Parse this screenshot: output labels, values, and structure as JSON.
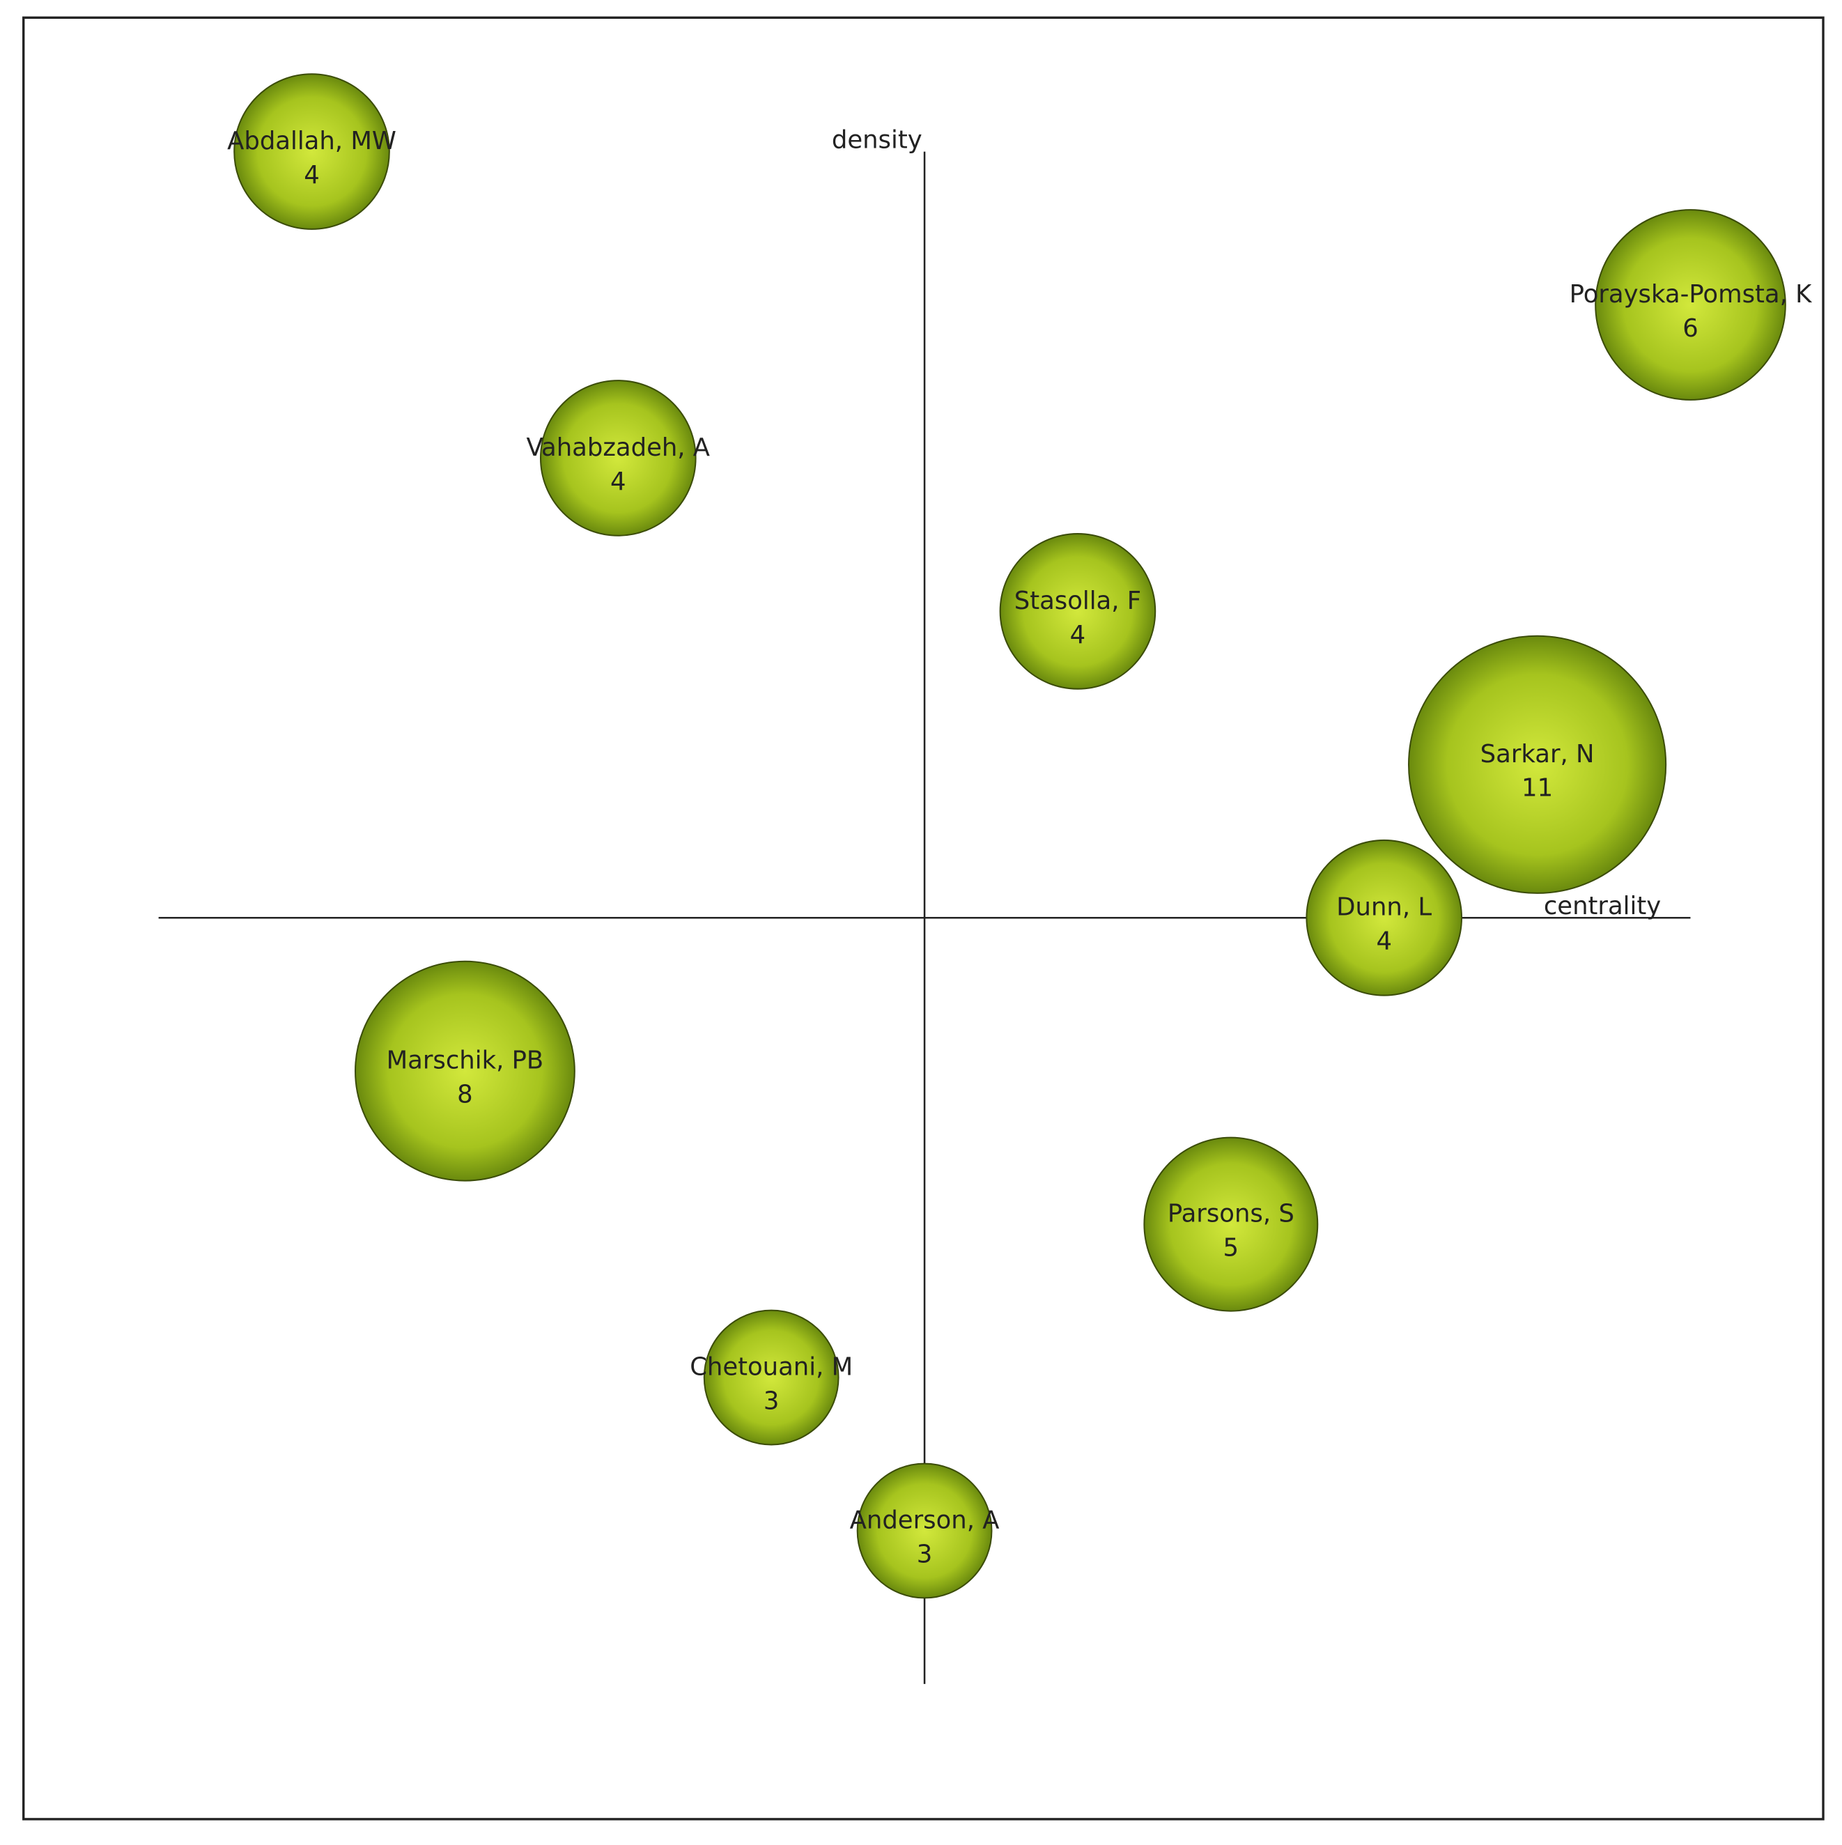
{
  "chart_data": {
    "type": "bubble",
    "x_label": "centrality",
    "y_label": "density",
    "xlim": [
      -1,
      1
    ],
    "ylim": [
      -1,
      1
    ],
    "color": "#a8c61e",
    "points": [
      {
        "label": "Abdallah, MW",
        "x": -0.8,
        "y": 1.0,
        "size": 4
      },
      {
        "label": "Porayska-Pomsta, K",
        "x": 1.0,
        "y": 0.8,
        "size": 6
      },
      {
        "label": "Vahabzadeh, A",
        "x": -0.4,
        "y": 0.6,
        "size": 4
      },
      {
        "label": "Stasolla, F",
        "x": 0.2,
        "y": 0.4,
        "size": 4
      },
      {
        "label": "Sarkar, N",
        "x": 0.8,
        "y": 0.2,
        "size": 11
      },
      {
        "label": "Dunn, L",
        "x": 0.6,
        "y": 0.0,
        "size": 4
      },
      {
        "label": "Marschik, PB",
        "x": -0.6,
        "y": -0.2,
        "size": 8
      },
      {
        "label": "Parsons, S",
        "x": 0.4,
        "y": -0.4,
        "size": 5
      },
      {
        "label": "Chetouani, M",
        "x": -0.2,
        "y": -0.6,
        "size": 3
      },
      {
        "label": "Anderson, A",
        "x": 0.0,
        "y": -0.8,
        "size": 3
      }
    ]
  }
}
